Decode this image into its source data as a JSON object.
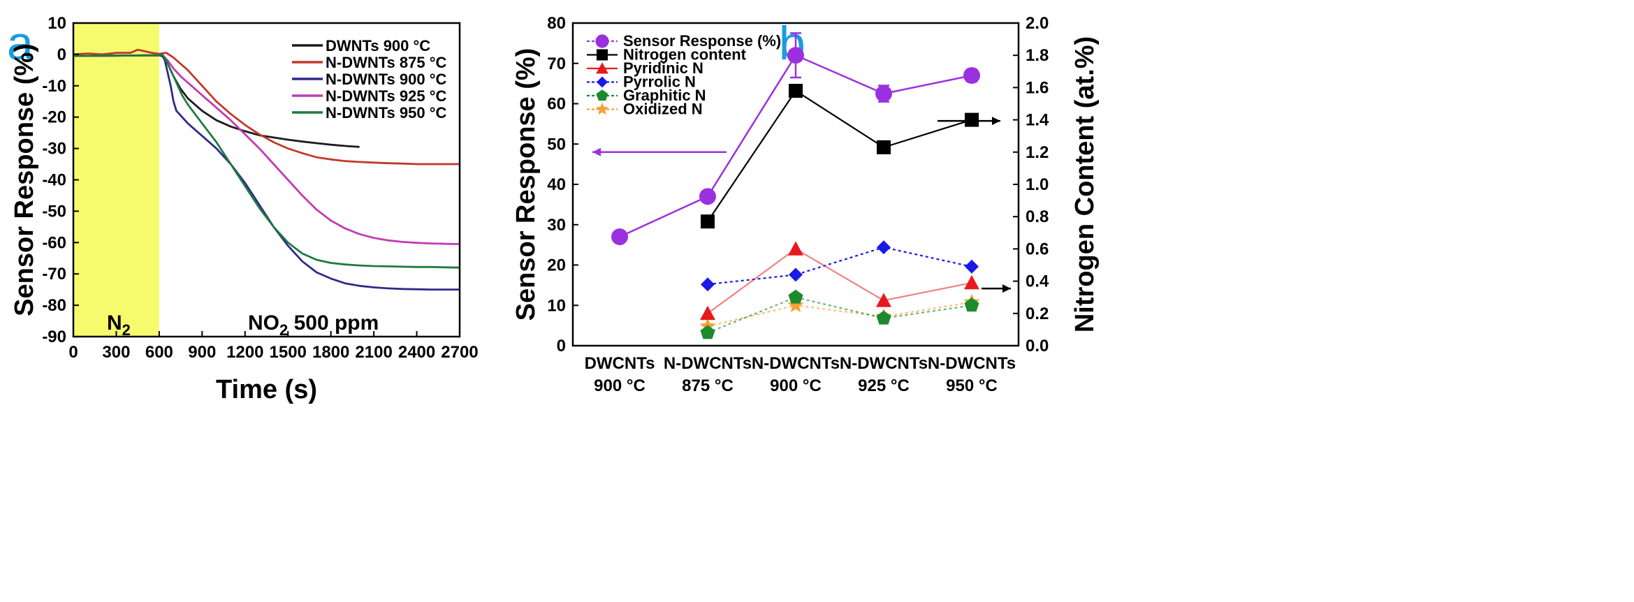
{
  "chart_data": [
    {
      "panel": "a",
      "type": "line",
      "title": "",
      "xlabel": "Time (s)",
      "ylabel": "Sensor Response (%)",
      "xlim": [
        0,
        2700
      ],
      "ylim": [
        -90,
        10
      ],
      "xticks": [
        0,
        300,
        600,
        900,
        1200,
        1500,
        1800,
        2100,
        2400,
        2700
      ],
      "yticks": [
        10,
        0,
        -10,
        -20,
        -30,
        -40,
        -50,
        -60,
        -70,
        -80,
        -90
      ],
      "shaded_region": {
        "x": [
          0,
          600
        ],
        "label_main": "N",
        "label_sub": "2",
        "color": "#f6fb6e"
      },
      "annotation": {
        "main": "NO",
        "sub": "2",
        "rest": " 500 ppm"
      },
      "series": [
        {
          "name": "DWNTs 900 °C",
          "color": "#1c1c1c",
          "x": [
            0,
            600,
            620,
            660,
            700,
            750,
            800,
            900,
            1000,
            1100,
            1200,
            1300,
            1400,
            1500,
            1600,
            1700,
            1800,
            1900,
            2000
          ],
          "y": [
            -0.5,
            -0.3,
            -0.5,
            -3,
            -7,
            -11,
            -14,
            -18,
            -21,
            -23,
            -24.5,
            -25.8,
            -26.5,
            -27.2,
            -27.8,
            -28.3,
            -28.8,
            -29.2,
            -29.5
          ]
        },
        {
          "name": "N-DWNTs 875 °C",
          "color": "#c0392b",
          "x": [
            0,
            100,
            200,
            300,
            400,
            450,
            500,
            550,
            600,
            650,
            700,
            750,
            800,
            900,
            1000,
            1100,
            1200,
            1300,
            1400,
            1500,
            1600,
            1700,
            1800,
            1900,
            2000,
            2100,
            2200,
            2300,
            2400,
            2500,
            2600,
            2700
          ],
          "y": [
            0,
            0.3,
            0,
            0.5,
            0.5,
            1.5,
            1,
            0.5,
            0.2,
            0.5,
            -1,
            -3,
            -5,
            -10,
            -15,
            -19,
            -22.5,
            -25.5,
            -28,
            -30,
            -31.5,
            -32.8,
            -33.5,
            -34,
            -34.3,
            -34.5,
            -34.7,
            -34.8,
            -35,
            -35,
            -35,
            -35
          ]
        },
        {
          "name": "N-DWNTs 900 °C",
          "color": "#2e2a8c",
          "x": [
            0,
            600,
            620,
            640,
            660,
            680,
            700,
            720,
            760,
            800,
            850,
            900,
            1000,
            1100,
            1200,
            1300,
            1400,
            1500,
            1600,
            1700,
            1800,
            1900,
            2000,
            2100,
            2200,
            2300,
            2400,
            2500,
            2600,
            2700
          ],
          "y": [
            -0.5,
            -0.3,
            0,
            -2,
            -6,
            -10,
            -15,
            -18,
            -20,
            -22,
            -24,
            -26,
            -30,
            -35,
            -41,
            -48,
            -55,
            -61,
            -66,
            -69.5,
            -71.5,
            -73,
            -73.8,
            -74.3,
            -74.6,
            -74.8,
            -74.9,
            -75,
            -75,
            -75
          ]
        },
        {
          "name": "N-DWNTs 925 °C",
          "color": "#c13bb4",
          "x": [
            0,
            600,
            620,
            660,
            700,
            750,
            800,
            850,
            900,
            1000,
            1100,
            1200,
            1300,
            1400,
            1500,
            1600,
            1700,
            1800,
            1900,
            2000,
            2100,
            2200,
            2300,
            2400,
            2500,
            2600,
            2700
          ],
          "y": [
            -0.5,
            -0.3,
            0,
            -2,
            -4.5,
            -7,
            -9,
            -11,
            -13,
            -17,
            -21,
            -25.5,
            -30,
            -35,
            -40,
            -45,
            -49.5,
            -53,
            -55.5,
            -57.3,
            -58.5,
            -59.3,
            -59.8,
            -60.1,
            -60.3,
            -60.4,
            -60.5
          ]
        },
        {
          "name": "N-DWNTs 950 °C",
          "color": "#1f7a3f",
          "x": [
            0,
            600,
            620,
            650,
            680,
            720,
            760,
            800,
            900,
            1000,
            1100,
            1200,
            1300,
            1400,
            1500,
            1600,
            1700,
            1800,
            1900,
            2000,
            2100,
            2200,
            2300,
            2400,
            2500,
            2600,
            2700
          ],
          "y": [
            -0.5,
            -0.3,
            0,
            -2,
            -5,
            -9,
            -13,
            -16,
            -22,
            -28,
            -35,
            -42,
            -49,
            -55,
            -60,
            -63.5,
            -65.5,
            -66.5,
            -67,
            -67.3,
            -67.5,
            -67.6,
            -67.7,
            -67.8,
            -67.8,
            -67.9,
            -68
          ]
        }
      ]
    },
    {
      "panel": "b",
      "type": "line",
      "title": "",
      "xlabel": "",
      "ylabel": "Sensor Response (%)",
      "y2label": "Nitrogen Content (at.%)",
      "ylim": [
        0,
        80
      ],
      "y2lim": [
        0.0,
        2.0
      ],
      "yticks": [
        0,
        10,
        20,
        30,
        40,
        50,
        60,
        70,
        80
      ],
      "y2ticks": [
        "0.0",
        "0.2",
        "0.4",
        "0.6",
        "0.8",
        "1.0",
        "1.2",
        "1.4",
        "1.6",
        "1.8",
        "2.0"
      ],
      "categories": [
        {
          "line1": "DWCNTs",
          "line2": "900 °C"
        },
        {
          "line1": "N-DWCNTs",
          "line2": "875 °C"
        },
        {
          "line1": "N-DWCNTs",
          "line2": "900 °C"
        },
        {
          "line1": "N-DWCNTs",
          "line2": "925 °C"
        },
        {
          "line1": "N-DWCNTs",
          "line2": "950 °C"
        }
      ],
      "series": [
        {
          "name": "Sensor Response (%)",
          "axis": "left",
          "color": "#9b30e0",
          "marker": "circle",
          "dashed": true,
          "values": [
            27,
            37,
            72,
            62.5,
            67
          ],
          "errors": [
            0,
            0,
            5.5,
            2,
            1.5
          ]
        },
        {
          "name": "Nitrogen content",
          "axis": "right",
          "color": "#000000",
          "marker": "square",
          "dashed": false,
          "values": [
            null,
            0.77,
            1.58,
            1.23,
            1.4
          ]
        },
        {
          "name": "Pyridinic N",
          "axis": "right",
          "color": "#e8191d",
          "marker": "triangle",
          "dashed": false,
          "values": [
            null,
            0.2,
            0.6,
            0.28,
            0.39
          ]
        },
        {
          "name": "Pyrrolic N",
          "axis": "right",
          "color": "#1a1ae8",
          "marker": "diamond",
          "dashed": true,
          "values": [
            null,
            0.38,
            0.44,
            0.61,
            0.49
          ]
        },
        {
          "name": "Graphitic N",
          "axis": "right",
          "color": "#1c8a2e",
          "marker": "pentagon",
          "dashed": true,
          "values": [
            null,
            0.08,
            0.3,
            0.17,
            0.25
          ]
        },
        {
          "name": "Oxidized N",
          "axis": "right",
          "color": "#f5a030",
          "marker": "star",
          "dashed": true,
          "values": [
            null,
            0.12,
            0.25,
            0.18,
            0.27
          ]
        }
      ]
    }
  ]
}
